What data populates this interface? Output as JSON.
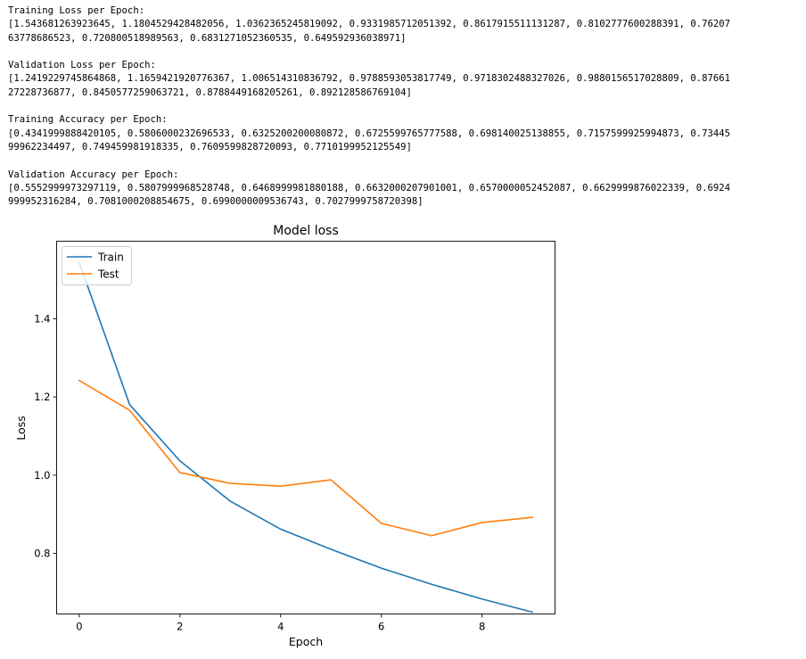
{
  "output": {
    "training_loss": {
      "header": "Training Loss per Epoch:",
      "lines": [
        "[1.543681263923645, 1.1804529428482056, 1.0362365245819092, 0.9331985712051392, 0.8617915511131287, 0.8102777600288391, 0.76207",
        "63778686523, 0.720800518989563, 0.6831271052360535, 0.649592936038971]"
      ]
    },
    "validation_loss": {
      "header": "Validation Loss per Epoch:",
      "lines": [
        "[1.2419229745864868, 1.1659421920776367, 1.006514310836792, 0.9788593053817749, 0.9718302488327026, 0.9880156517028809, 0.87661",
        "27228736877, 0.8450577259063721, 0.8788449168205261, 0.892128586769104]"
      ]
    },
    "training_accuracy": {
      "header": "Training Accuracy per Epoch:",
      "lines": [
        "[0.4341999888420105, 0.5806000232696533, 0.6325200200080872, 0.6725599765777588, 0.698140025138855, 0.7157599925994873, 0.73445",
        "99962234497, 0.749459981918335, 0.7609599828720093, 0.7710199952125549]"
      ]
    },
    "validation_accuracy": {
      "header": "Validation Accuracy per Epoch:",
      "lines": [
        "[0.5552999973297119, 0.5807999968528748, 0.6468999981880188, 0.6632000207901001, 0.6570000052452087, 0.6629999876022339, 0.6924",
        "999952316284, 0.7081000208854675, 0.6990000009536743, 0.7027999758720398]"
      ]
    }
  },
  "chart_data": {
    "type": "line",
    "title": "Model loss",
    "xlabel": "Epoch",
    "ylabel": "Loss",
    "x": [
      0,
      1,
      2,
      3,
      4,
      5,
      6,
      7,
      8,
      9
    ],
    "xticks": [
      0,
      2,
      4,
      6,
      8
    ],
    "yticks": [
      0.8,
      1.0,
      1.2,
      1.4
    ],
    "xtick_labels": [
      "0",
      "2",
      "4",
      "6",
      "8"
    ],
    "ytick_labels": [
      "0.8",
      "1.0",
      "1.2",
      "1.4"
    ],
    "xlim": [
      -0.45,
      9.45
    ],
    "ylim": [
      0.6449,
      1.5983
    ],
    "legend_position": "upper left",
    "grid": false,
    "series": [
      {
        "name": "Train",
        "color": "#1f77b4",
        "values": [
          1.543681263923645,
          1.1804529428482056,
          1.0362365245819092,
          0.9331985712051392,
          0.8617915511131287,
          0.8102777600288391,
          0.7620763778686523,
          0.720800518989563,
          0.6831271052360535,
          0.649592936038971
        ]
      },
      {
        "name": "Test",
        "color": "#ff7f0e",
        "values": [
          1.2419229745864868,
          1.1659421920776367,
          1.006514310836792,
          0.9788593053817749,
          0.9718302488327026,
          0.9880156517028809,
          0.8766127228736877,
          0.8450577259063721,
          0.8788449168205261,
          0.892128586769104
        ]
      }
    ]
  }
}
